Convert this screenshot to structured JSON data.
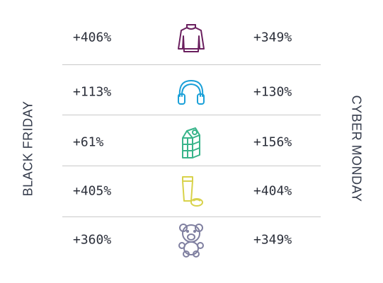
{
  "chart_data": {
    "type": "table",
    "left_label": "BLACK FRIDAY",
    "right_label": "CYBER MONDAY",
    "rows": [
      {
        "icon": "sweater-icon",
        "color": "#6a1f5e",
        "black_friday": "+406%",
        "cyber_monday": "+349%"
      },
      {
        "icon": "headphones-icon",
        "color": "#1aa0d8",
        "black_friday": "+113%",
        "cyber_monday": "+130%"
      },
      {
        "icon": "milk-carton-icon",
        "color": "#38b48a",
        "black_friday": "+61%",
        "cyber_monday": "+156%"
      },
      {
        "icon": "cosmetics-icon",
        "color": "#d8d24a",
        "black_friday": "+405%",
        "cyber_monday": "+404%"
      },
      {
        "icon": "teddy-bear-icon",
        "color": "#7f7fa0",
        "black_friday": "+360%",
        "cyber_monday": "+349%"
      }
    ]
  }
}
